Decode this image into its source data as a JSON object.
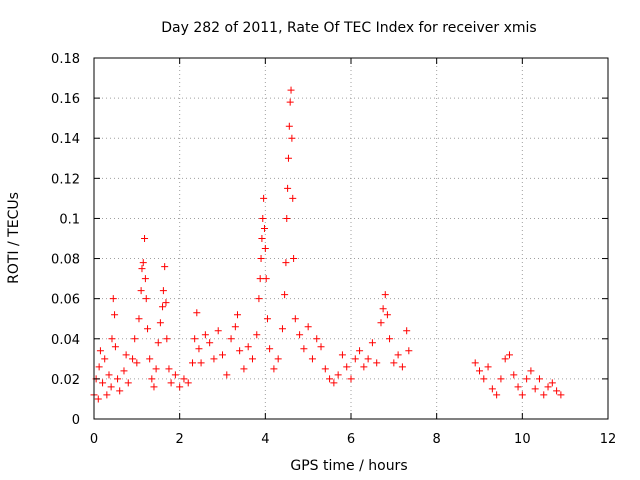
{
  "chart_data": {
    "type": "scatter",
    "title": "Day 282 of 2011, Rate Of TEC Index for receiver xmis",
    "xlabel": "GPS time / hours",
    "ylabel": "ROTI / TECUs",
    "xlim": [
      0,
      12
    ],
    "ylim": [
      0,
      0.18
    ],
    "x_ticks": [
      0,
      2,
      4,
      6,
      8,
      10,
      12
    ],
    "y_ticks": [
      0,
      0.02,
      0.04,
      0.06,
      0.08,
      0.1,
      0.12,
      0.14,
      0.16,
      0.18
    ],
    "x_tick_labels": [
      "0",
      "2",
      "4",
      "6",
      "8",
      "10",
      "12"
    ],
    "y_tick_labels": [
      "0",
      "0.02",
      "0.04",
      "0.06",
      "0.08",
      "0.1",
      "0.12",
      "0.14",
      "0.16",
      "0.18"
    ],
    "grid": true,
    "marker": "+",
    "color": "#ff0000",
    "series": [
      {
        "name": "ROTI",
        "points": [
          [
            0.0,
            0.012
          ],
          [
            0.05,
            0.02
          ],
          [
            0.1,
            0.01
          ],
          [
            0.12,
            0.026
          ],
          [
            0.15,
            0.034
          ],
          [
            0.2,
            0.018
          ],
          [
            0.25,
            0.03
          ],
          [
            0.3,
            0.012
          ],
          [
            0.35,
            0.022
          ],
          [
            0.4,
            0.016
          ],
          [
            0.42,
            0.04
          ],
          [
            0.45,
            0.06
          ],
          [
            0.48,
            0.052
          ],
          [
            0.5,
            0.036
          ],
          [
            0.55,
            0.02
          ],
          [
            0.6,
            0.014
          ],
          [
            0.7,
            0.024
          ],
          [
            0.75,
            0.032
          ],
          [
            0.8,
            0.018
          ],
          [
            0.9,
            0.03
          ],
          [
            0.95,
            0.04
          ],
          [
            1.0,
            0.028
          ],
          [
            1.05,
            0.05
          ],
          [
            1.1,
            0.064
          ],
          [
            1.12,
            0.075
          ],
          [
            1.15,
            0.078
          ],
          [
            1.18,
            0.09
          ],
          [
            1.2,
            0.07
          ],
          [
            1.22,
            0.06
          ],
          [
            1.25,
            0.045
          ],
          [
            1.3,
            0.03
          ],
          [
            1.35,
            0.02
          ],
          [
            1.4,
            0.016
          ],
          [
            1.45,
            0.025
          ],
          [
            1.5,
            0.038
          ],
          [
            1.55,
            0.048
          ],
          [
            1.6,
            0.056
          ],
          [
            1.62,
            0.064
          ],
          [
            1.65,
            0.076
          ],
          [
            1.68,
            0.058
          ],
          [
            1.7,
            0.04
          ],
          [
            1.75,
            0.025
          ],
          [
            1.8,
            0.018
          ],
          [
            1.9,
            0.022
          ],
          [
            2.0,
            0.016
          ],
          [
            2.1,
            0.02
          ],
          [
            2.2,
            0.018
          ],
          [
            2.3,
            0.028
          ],
          [
            2.35,
            0.04
          ],
          [
            2.4,
            0.053
          ],
          [
            2.45,
            0.035
          ],
          [
            2.5,
            0.028
          ],
          [
            2.6,
            0.042
          ],
          [
            2.7,
            0.038
          ],
          [
            2.8,
            0.03
          ],
          [
            2.9,
            0.044
          ],
          [
            3.0,
            0.032
          ],
          [
            3.1,
            0.022
          ],
          [
            3.2,
            0.04
          ],
          [
            3.3,
            0.046
          ],
          [
            3.35,
            0.052
          ],
          [
            3.4,
            0.034
          ],
          [
            3.5,
            0.025
          ],
          [
            3.6,
            0.036
          ],
          [
            3.7,
            0.03
          ],
          [
            3.8,
            0.042
          ],
          [
            3.85,
            0.06
          ],
          [
            3.88,
            0.07
          ],
          [
            3.9,
            0.08
          ],
          [
            3.92,
            0.09
          ],
          [
            3.94,
            0.1
          ],
          [
            3.96,
            0.11
          ],
          [
            3.98,
            0.095
          ],
          [
            4.0,
            0.085
          ],
          [
            4.02,
            0.07
          ],
          [
            4.05,
            0.05
          ],
          [
            4.1,
            0.035
          ],
          [
            4.2,
            0.025
          ],
          [
            4.3,
            0.03
          ],
          [
            4.4,
            0.045
          ],
          [
            4.45,
            0.062
          ],
          [
            4.48,
            0.078
          ],
          [
            4.5,
            0.1
          ],
          [
            4.52,
            0.115
          ],
          [
            4.54,
            0.13
          ],
          [
            4.56,
            0.146
          ],
          [
            4.58,
            0.158
          ],
          [
            4.6,
            0.164
          ],
          [
            4.62,
            0.14
          ],
          [
            4.64,
            0.11
          ],
          [
            4.66,
            0.08
          ],
          [
            4.7,
            0.05
          ],
          [
            4.8,
            0.042
          ],
          [
            4.9,
            0.035
          ],
          [
            5.0,
            0.046
          ],
          [
            5.1,
            0.03
          ],
          [
            5.2,
            0.04
          ],
          [
            5.3,
            0.036
          ],
          [
            5.4,
            0.025
          ],
          [
            5.5,
            0.02
          ],
          [
            5.6,
            0.018
          ],
          [
            5.7,
            0.022
          ],
          [
            5.8,
            0.032
          ],
          [
            5.9,
            0.026
          ],
          [
            6.0,
            0.02
          ],
          [
            6.1,
            0.03
          ],
          [
            6.2,
            0.034
          ],
          [
            6.3,
            0.026
          ],
          [
            6.4,
            0.03
          ],
          [
            6.5,
            0.038
          ],
          [
            6.6,
            0.028
          ],
          [
            6.7,
            0.048
          ],
          [
            6.75,
            0.055
          ],
          [
            6.8,
            0.062
          ],
          [
            6.85,
            0.052
          ],
          [
            6.9,
            0.04
          ],
          [
            7.0,
            0.028
          ],
          [
            7.1,
            0.032
          ],
          [
            7.2,
            0.026
          ],
          [
            7.3,
            0.044
          ],
          [
            7.35,
            0.034
          ],
          [
            8.9,
            0.028
          ],
          [
            9.0,
            0.024
          ],
          [
            9.1,
            0.02
          ],
          [
            9.2,
            0.026
          ],
          [
            9.3,
            0.015
          ],
          [
            9.4,
            0.012
          ],
          [
            9.5,
            0.02
          ],
          [
            9.6,
            0.03
          ],
          [
            9.7,
            0.032
          ],
          [
            9.8,
            0.022
          ],
          [
            9.9,
            0.016
          ],
          [
            10.0,
            0.012
          ],
          [
            10.1,
            0.02
          ],
          [
            10.2,
            0.024
          ],
          [
            10.3,
            0.015
          ],
          [
            10.4,
            0.02
          ],
          [
            10.5,
            0.012
          ],
          [
            10.6,
            0.016
          ],
          [
            10.7,
            0.018
          ],
          [
            10.8,
            0.014
          ],
          [
            10.9,
            0.012
          ]
        ]
      }
    ]
  }
}
